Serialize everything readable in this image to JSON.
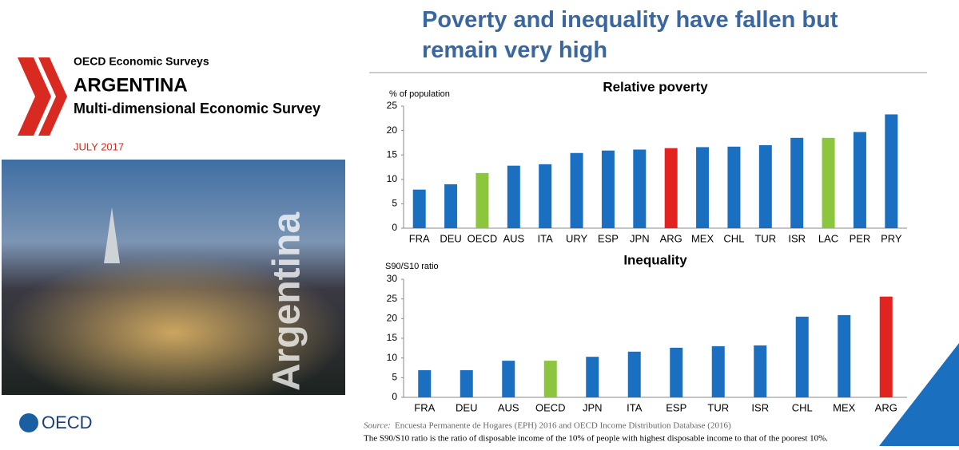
{
  "cover": {
    "series_name": "OECD Economic Surveys",
    "country": "ARGENTINA",
    "subtitle": "Multi-dimensional Economic Survey",
    "date": "JULY 2017",
    "spine_text": "Argentina",
    "logo": "OECD"
  },
  "slide_title": "Poverty and inequality have fallen but remain very high",
  "source_label": "Source:",
  "source": "Encuesta Permanente de Hogares (EPH) 2016 and OECD Income Distribution Database (2016)",
  "note": "The S90/S10 ratio is the ratio of disposable income of the 10% of people with highest disposable income to that of the poorest 10%.",
  "chart_data": [
    {
      "type": "bar",
      "title": "Relative poverty",
      "y_label": "% of population",
      "categories": [
        "FRA",
        "DEU",
        "OECD",
        "AUS",
        "ITA",
        "URY",
        "ESP",
        "JPN",
        "ARG",
        "MEX",
        "CHL",
        "TUR",
        "ISR",
        "LAC",
        "PER",
        "PRY"
      ],
      "values": [
        7.9,
        9.0,
        11.3,
        12.8,
        13.1,
        15.4,
        15.9,
        16.1,
        16.4,
        16.6,
        16.7,
        17.0,
        18.5,
        18.5,
        19.7,
        23.3
      ],
      "colors": [
        "#1b6fc0",
        "#1b6fc0",
        "#8cc63e",
        "#1b6fc0",
        "#1b6fc0",
        "#1b6fc0",
        "#1b6fc0",
        "#1b6fc0",
        "#e3231f",
        "#1b6fc0",
        "#1b6fc0",
        "#1b6fc0",
        "#1b6fc0",
        "#8cc63e",
        "#1b6fc0",
        "#1b6fc0"
      ],
      "ylim": [
        0,
        25
      ],
      "yticks": [
        0,
        5,
        10,
        15,
        20,
        25
      ],
      "grid": false
    },
    {
      "type": "bar",
      "title": "Inequality",
      "y_label": "S90/S10 ratio",
      "categories": [
        "FRA",
        "DEU",
        "AUS",
        "OECD",
        "JPN",
        "ITA",
        "ESP",
        "TUR",
        "ISR",
        "CHL",
        "MEX",
        "ARG"
      ],
      "values": [
        6.9,
        6.9,
        9.3,
        9.3,
        10.3,
        11.6,
        12.6,
        13.0,
        13.2,
        20.5,
        20.9,
        25.6
      ],
      "colors": [
        "#1b6fc0",
        "#1b6fc0",
        "#1b6fc0",
        "#8cc63e",
        "#1b6fc0",
        "#1b6fc0",
        "#1b6fc0",
        "#1b6fc0",
        "#1b6fc0",
        "#1b6fc0",
        "#1b6fc0",
        "#e3231f"
      ],
      "ylim": [
        0,
        30
      ],
      "yticks": [
        0,
        5,
        10,
        15,
        20,
        25,
        30
      ],
      "grid": false
    }
  ]
}
